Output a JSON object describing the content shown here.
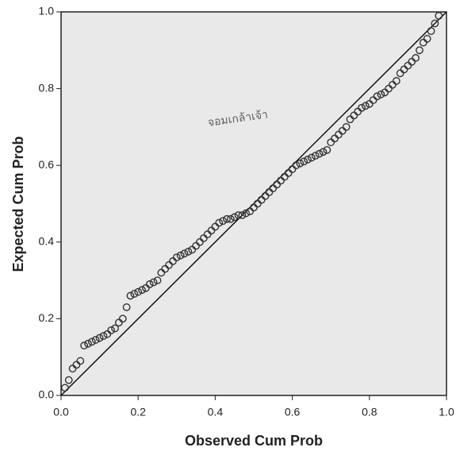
{
  "chart_data": {
    "type": "scatter",
    "x_label": "Observed Cum Prob",
    "y_label": "Expected Cum Prob",
    "watermark": "จอมเกล้าเจ้า",
    "color": "#333333",
    "reference_line": true,
    "xlim": [
      0,
      1
    ],
    "ylim": [
      0,
      1
    ],
    "xticks": [
      {
        "value": 0,
        "label": "0.0"
      },
      0.2,
      0.4,
      0.6,
      0.8,
      {
        "value": 1,
        "label": "1.0"
      }
    ],
    "yticks": [
      {
        "value": 0,
        "label": "0.0"
      },
      0.2,
      0.4,
      0.6,
      0.8,
      {
        "value": 1,
        "label": "1.0"
      }
    ],
    "x": [
      0.01,
      0.02,
      0.03,
      0.04,
      0.05,
      0.06,
      0.07,
      0.08,
      0.09,
      0.1,
      0.11,
      0.12,
      0.13,
      0.14,
      0.15,
      0.16,
      0.17,
      0.18,
      0.19,
      0.2,
      0.21,
      0.22,
      0.23,
      0.24,
      0.25,
      0.26,
      0.27,
      0.28,
      0.29,
      0.3,
      0.31,
      0.32,
      0.33,
      0.34,
      0.35,
      0.36,
      0.37,
      0.38,
      0.39,
      0.4,
      0.41,
      0.42,
      0.43,
      0.44,
      0.45,
      0.46,
      0.47,
      0.48,
      0.49,
      0.5,
      0.51,
      0.52,
      0.53,
      0.54,
      0.55,
      0.56,
      0.57,
      0.58,
      0.59,
      0.6,
      0.61,
      0.62,
      0.63,
      0.64,
      0.65,
      0.66,
      0.67,
      0.68,
      0.69,
      0.7,
      0.71,
      0.72,
      0.73,
      0.74,
      0.75,
      0.76,
      0.77,
      0.78,
      0.79,
      0.8,
      0.81,
      0.82,
      0.83,
      0.84,
      0.85,
      0.86,
      0.87,
      0.88,
      0.89,
      0.9,
      0.91,
      0.92,
      0.93,
      0.94,
      0.95,
      0.96,
      0.97,
      0.98
    ],
    "y": [
      0.02,
      0.04,
      0.07,
      0.08,
      0.09,
      0.13,
      0.135,
      0.14,
      0.145,
      0.15,
      0.155,
      0.16,
      0.17,
      0.175,
      0.19,
      0.2,
      0.23,
      0.26,
      0.265,
      0.27,
      0.275,
      0.28,
      0.29,
      0.295,
      0.3,
      0.32,
      0.33,
      0.34,
      0.35,
      0.36,
      0.365,
      0.37,
      0.375,
      0.38,
      0.39,
      0.4,
      0.41,
      0.42,
      0.43,
      0.44,
      0.45,
      0.455,
      0.46,
      0.46,
      0.465,
      0.47,
      0.47,
      0.475,
      0.48,
      0.49,
      0.5,
      0.51,
      0.52,
      0.53,
      0.54,
      0.55,
      0.56,
      0.57,
      0.58,
      0.59,
      0.6,
      0.605,
      0.61,
      0.615,
      0.62,
      0.625,
      0.63,
      0.635,
      0.64,
      0.66,
      0.67,
      0.68,
      0.69,
      0.7,
      0.72,
      0.73,
      0.74,
      0.75,
      0.755,
      0.76,
      0.77,
      0.78,
      0.785,
      0.79,
      0.8,
      0.81,
      0.82,
      0.84,
      0.85,
      0.86,
      0.87,
      0.88,
      0.9,
      0.92,
      0.93,
      0.95,
      0.97,
      0.99
    ]
  }
}
